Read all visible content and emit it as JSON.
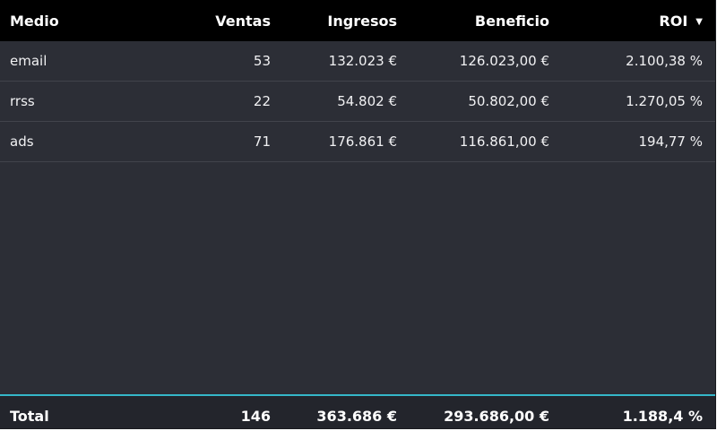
{
  "table": {
    "headers": {
      "medio": "Medio",
      "ventas": "Ventas",
      "ingresos": "Ingresos",
      "beneficio": "Beneficio",
      "roi": "ROI"
    },
    "sort_icon": "sort-descending-icon",
    "rows": [
      {
        "medio": "email",
        "ventas": "53",
        "ingresos": "132.023 €",
        "beneficio": "126.023,00 €",
        "roi": "2.100,38 %"
      },
      {
        "medio": "rrss",
        "ventas": "22",
        "ingresos": "54.802 €",
        "beneficio": "50.802,00 €",
        "roi": "1.270,05 %"
      },
      {
        "medio": "ads",
        "ventas": "71",
        "ingresos": "176.861 €",
        "beneficio": "116.861,00 €",
        "roi": "194,77 %"
      }
    ],
    "total": {
      "medio": "Total",
      "ventas": "146",
      "ingresos": "363.686 €",
      "beneficio": "293.686,00 €",
      "roi": "1.188,4 %"
    },
    "colors": {
      "header_bg": "#000000",
      "body_bg": "#2c2e36",
      "row_divider": "#41434b",
      "total_accent": "#35b7c9"
    }
  }
}
